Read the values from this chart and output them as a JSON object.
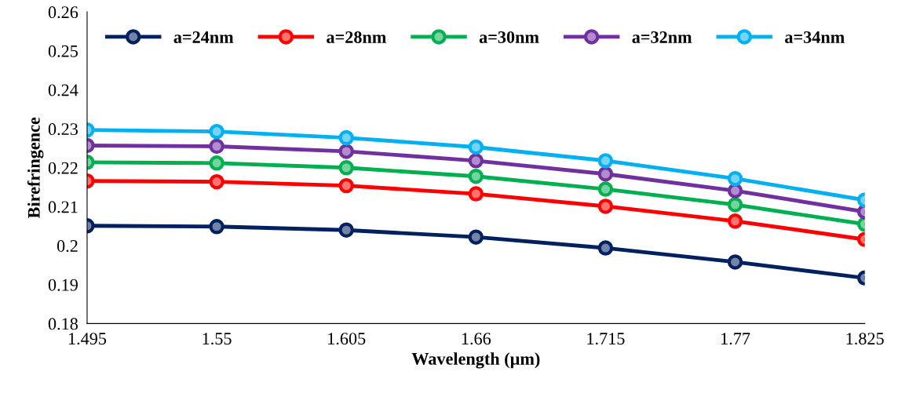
{
  "chart_data": {
    "type": "line",
    "xlabel": "Wavelength (µm)",
    "ylabel": "Birefringence",
    "x": [
      1.495,
      1.55,
      1.605,
      1.66,
      1.715,
      1.77,
      1.825
    ],
    "xlim": [
      1.495,
      1.825
    ],
    "xticks": [
      1.495,
      1.55,
      1.605,
      1.66,
      1.715,
      1.77,
      1.825
    ],
    "ylim": [
      0.18,
      0.26
    ],
    "yticks": [
      0.18,
      0.19,
      0.2,
      0.21,
      0.22,
      0.23,
      0.24,
      0.25,
      0.26
    ],
    "grid": false,
    "legend": "top",
    "marker": "circle",
    "line_style": "solid",
    "series": [
      {
        "name": "a=24nm",
        "color": "#002060",
        "values": [
          0.2051,
          0.2049,
          0.204,
          0.2022,
          0.1994,
          0.1958,
          0.1917
        ]
      },
      {
        "name": "a=28nm",
        "color": "#ff0000",
        "values": [
          0.2166,
          0.2164,
          0.2154,
          0.2133,
          0.2101,
          0.2063,
          0.2016
        ]
      },
      {
        "name": "a=30nm",
        "color": "#00b050",
        "values": [
          0.2214,
          0.2212,
          0.22,
          0.2178,
          0.2145,
          0.2105,
          0.2055
        ]
      },
      {
        "name": "a=32nm",
        "color": "#7030a0",
        "values": [
          0.2257,
          0.2255,
          0.2242,
          0.2218,
          0.2184,
          0.2141,
          0.2087
        ]
      },
      {
        "name": "a=34nm",
        "color": "#00b0f0",
        "values": [
          0.2297,
          0.2293,
          0.2277,
          0.2253,
          0.2218,
          0.2172,
          0.2117
        ]
      }
    ]
  }
}
